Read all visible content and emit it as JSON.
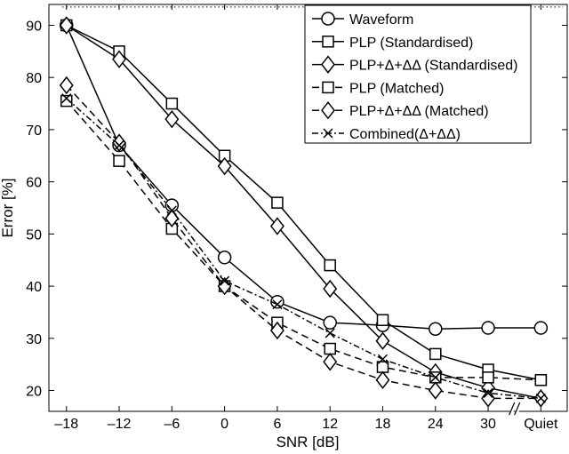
{
  "chart_data": {
    "type": "line",
    "title": "",
    "xlabel": "SNR [dB]",
    "ylabel": "Error [%]",
    "categories": [
      "–18",
      "–12",
      "–6",
      "0",
      "6",
      "12",
      "18",
      "24",
      "30",
      "Quiet"
    ],
    "x": [
      -18,
      -12,
      -6,
      0,
      6,
      12,
      18,
      24,
      30,
      36
    ],
    "xlim": [
      -20,
      39
    ],
    "ylim": [
      16,
      94
    ],
    "yticks": [
      20,
      30,
      40,
      50,
      60,
      70,
      80,
      90
    ],
    "break_marker": "//",
    "grid": false,
    "legend_position": "top-right",
    "series": [
      {
        "name": "Waveform",
        "line": "solid",
        "marker": "circle",
        "values": [
          90,
          67,
          55.5,
          45.5,
          37,
          33,
          32.5,
          31.8,
          32,
          32
        ]
      },
      {
        "name": "PLP (Standardised)",
        "line": "solid",
        "marker": "square",
        "values": [
          90,
          85,
          75,
          65,
          56,
          44,
          33.5,
          27,
          24,
          22
        ]
      },
      {
        "name": "PLP+Δ+ΔΔ (Standardised)",
        "line": "solid",
        "marker": "diamond",
        "values": [
          90,
          83.5,
          72,
          63,
          51.5,
          39.5,
          29.5,
          23.5,
          20.5,
          18.5
        ]
      },
      {
        "name": "PLP (Matched)",
        "line": "dashed",
        "marker": "square",
        "values": [
          75.5,
          64,
          51,
          40,
          33,
          28,
          24.5,
          22.5,
          22.5,
          22
        ]
      },
      {
        "name": "PLP+Δ+ΔΔ (Matched)",
        "line": "dashed",
        "marker": "diamond",
        "values": [
          78.5,
          67.5,
          53,
          40,
          31.5,
          25.5,
          22,
          20,
          18.5,
          18.5
        ]
      },
      {
        "name": "Combined(Δ+ΔΔ)",
        "line": "dashdot",
        "marker": "x",
        "values": [
          76,
          67,
          54.5,
          41,
          36.5,
          31,
          26,
          22.5,
          19.5,
          18.5
        ]
      }
    ],
    "reference_line": {
      "style": "dotted",
      "value": 93.5
    }
  }
}
